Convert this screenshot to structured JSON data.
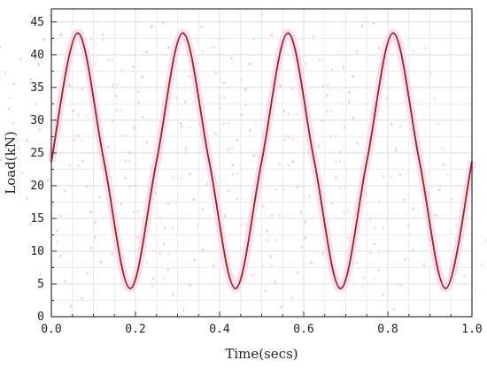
{
  "chart_data": {
    "type": "line",
    "xlabel": "Time(secs)",
    "ylabel": "Load(kN)",
    "xlim": [
      0.0,
      1.0
    ],
    "ylim": [
      0,
      47
    ],
    "x_ticks": [
      0.0,
      0.2,
      0.4,
      0.6,
      0.8,
      1.0
    ],
    "x_tick_labels": [
      "0.0",
      "0.2",
      "0.4",
      "0.6",
      "0.8",
      "1.0"
    ],
    "y_ticks": [
      0,
      5,
      10,
      15,
      20,
      25,
      30,
      35,
      40,
      45
    ],
    "y_tick_labels": [
      "0",
      "5",
      "10",
      "15",
      "20",
      "25",
      "30",
      "35",
      "40",
      "45"
    ],
    "grid": true,
    "series": [
      {
        "color": "#8b2d10",
        "x": [
          0.0,
          0.0625,
          0.125,
          0.1875,
          0.25,
          0.3125,
          0.375,
          0.4375,
          0.5,
          0.5625,
          0.625,
          0.6875,
          0.75,
          0.8125,
          0.875,
          0.9375,
          1.0
        ],
        "y": [
          23.7,
          43.3,
          23.8,
          4.3,
          23.7,
          43.3,
          23.8,
          4.3,
          23.7,
          43.3,
          23.8,
          4.3,
          23.7,
          43.3,
          23.8,
          4.3,
          23.7
        ]
      }
    ],
    "ghost_color": "#ff66cc"
  }
}
